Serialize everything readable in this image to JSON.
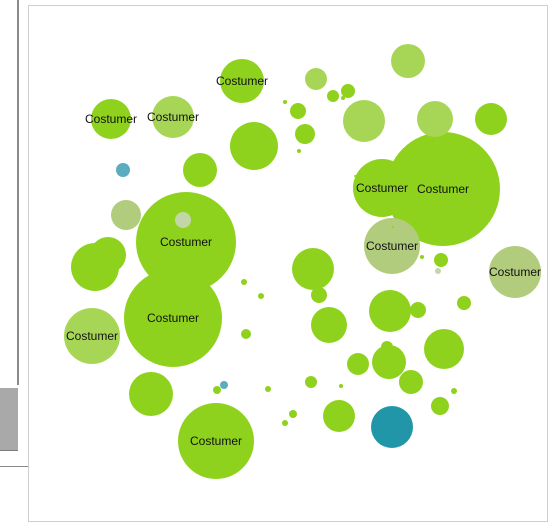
{
  "colors": {
    "primary_green": "#8fd21e",
    "light_green": "#a7d656",
    "sage": "#b2cc7e",
    "pale_sage": "#c3d6a8",
    "steel_blue": "#5cacbf",
    "teal": "#2196a8"
  },
  "chart_data": {
    "type": "bubble",
    "title": "",
    "legend": "none",
    "grid": false,
    "label_text": "Costumer",
    "bubbles": [
      {
        "value": 100,
        "label": "Costumer",
        "color": "primary_green"
      },
      {
        "value": 88,
        "label": "Costumer",
        "color": "primary_green"
      },
      {
        "value": 86,
        "label": "Costumer",
        "color": "primary_green"
      },
      {
        "value": 66,
        "label": "Costumer",
        "color": "primary_green"
      },
      {
        "value": 46,
        "label": "Costumer",
        "color": "sage"
      },
      {
        "value": 51,
        "label": "Costumer",
        "color": "primary_green"
      },
      {
        "value": 49,
        "label": "Costumer",
        "color": "light_green"
      },
      {
        "value": 49,
        "label": "Costumer",
        "color": "sage"
      },
      {
        "value": 39,
        "label": "Costumer",
        "color": "primary_green"
      },
      {
        "value": 36,
        "label": "Costumer",
        "color": "light_green"
      },
      {
        "value": 35,
        "label": "Costumer",
        "color": "primary_green"
      },
      {
        "value": 13,
        "label": "",
        "color": "steel_blue"
      },
      {
        "value": 35,
        "label": "",
        "color": "teal"
      },
      {
        "value": 5,
        "label": "",
        "color": "steel_blue"
      },
      {
        "value": 26,
        "label": "",
        "color": "sage"
      },
      {
        "value": 14,
        "label": "",
        "color": "pale_sage"
      },
      {
        "value": 4,
        "label": "",
        "color": "pale_sage"
      },
      {
        "value": 37,
        "label": "",
        "color": "light_green"
      },
      {
        "value": 29,
        "label": "",
        "color": "light_green"
      },
      {
        "value": 18,
        "label": "",
        "color": "light_green"
      },
      {
        "value": 30,
        "label": "",
        "color": "light_green"
      },
      {
        "value": 28,
        "label": "",
        "color": "primary_green"
      },
      {
        "value": 42,
        "label": "",
        "color": "primary_green"
      },
      {
        "value": 42,
        "label": "",
        "color": "primary_green"
      },
      {
        "value": 38,
        "label": "",
        "color": "primary_green"
      },
      {
        "value": 36,
        "label": "",
        "color": "primary_green"
      },
      {
        "value": 36,
        "label": "",
        "color": "primary_green"
      },
      {
        "value": 35,
        "label": "",
        "color": "primary_green"
      },
      {
        "value": 32,
        "label": "",
        "color": "primary_green"
      },
      {
        "value": 32,
        "label": "",
        "color": "primary_green"
      },
      {
        "value": 29,
        "label": "",
        "color": "primary_green"
      },
      {
        "value": 29,
        "label": "",
        "color": "primary_green"
      },
      {
        "value": 28,
        "label": "",
        "color": "primary_green"
      },
      {
        "value": 20,
        "label": "",
        "color": "primary_green"
      },
      {
        "value": 18,
        "label": "",
        "color": "primary_green"
      },
      {
        "value": 16,
        "label": "",
        "color": "primary_green"
      },
      {
        "value": 15,
        "label": "",
        "color": "primary_green"
      },
      {
        "value": 14,
        "label": "",
        "color": "primary_green"
      },
      {
        "value": 14,
        "label": "",
        "color": "primary_green"
      },
      {
        "value": 13,
        "label": "",
        "color": "primary_green"
      },
      {
        "value": 11,
        "label": "",
        "color": "primary_green"
      },
      {
        "value": 11,
        "label": "",
        "color": "primary_green"
      },
      {
        "value": 11,
        "label": "",
        "color": "primary_green"
      },
      {
        "value": 9,
        "label": "",
        "color": "primary_green"
      },
      {
        "value": 9,
        "label": "",
        "color": "primary_green"
      },
      {
        "value": 9,
        "label": "",
        "color": "primary_green"
      },
      {
        "value": 8,
        "label": "",
        "color": "primary_green"
      },
      {
        "value": 8,
        "label": "",
        "color": "primary_green"
      },
      {
        "value": 7,
        "label": "",
        "color": "primary_green"
      },
      {
        "value": 7,
        "label": "",
        "color": "primary_green"
      },
      {
        "value": 7,
        "label": "",
        "color": "primary_green"
      },
      {
        "value": 6,
        "label": "",
        "color": "primary_green"
      },
      {
        "value": 6,
        "label": "",
        "color": "primary_green"
      },
      {
        "value": 5,
        "label": "",
        "color": "primary_green"
      },
      {
        "value": 5,
        "label": "",
        "color": "primary_green"
      },
      {
        "value": 5,
        "label": "",
        "color": "primary_green"
      },
      {
        "value": 5,
        "label": "",
        "color": "primary_green"
      },
      {
        "value": 4,
        "label": "",
        "color": "primary_green"
      },
      {
        "value": 4,
        "label": "",
        "color": "primary_green"
      },
      {
        "value": 4,
        "label": "",
        "color": "primary_green"
      },
      {
        "value": 3,
        "label": "",
        "color": "primary_green"
      },
      {
        "value": 3,
        "label": "",
        "color": "primary_green"
      },
      {
        "value": 3,
        "label": "",
        "color": "primary_green"
      },
      {
        "value": 3,
        "label": "",
        "color": "primary_green"
      },
      {
        "value": 2,
        "label": "",
        "color": "primary_green"
      },
      {
        "value": 2,
        "label": "",
        "color": "primary_green"
      },
      {
        "value": 2,
        "label": "",
        "color": "primary_green"
      },
      {
        "value": 2,
        "label": "",
        "color": "primary_green"
      },
      {
        "value": 2,
        "label": "",
        "color": "primary_green"
      },
      {
        "value": 1,
        "label": "",
        "color": "primary_green"
      }
    ]
  }
}
